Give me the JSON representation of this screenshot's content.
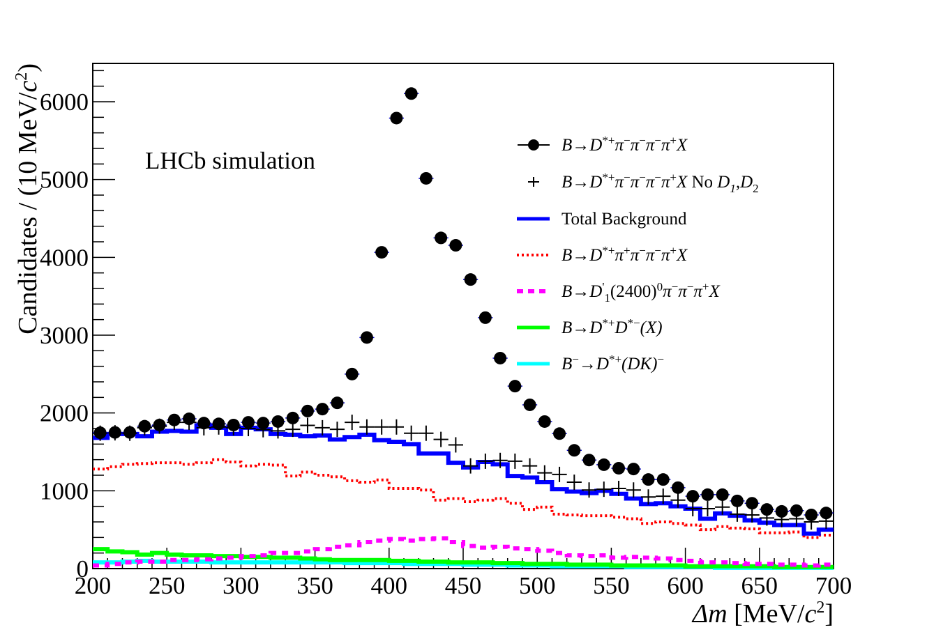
{
  "chart_data": {
    "type": "histogram",
    "title": "",
    "annotation": "LHCb simulation",
    "xlabel": "Δm [MeV/c²]",
    "xlabel_parts": {
      "symbol": "Δm",
      "unit_prefix": " [MeV/",
      "unit_c": "c",
      "unit_exp": "2",
      "unit_suffix": "]"
    },
    "ylabel": "Candidates / (10 MeV/c²)",
    "ylabel_parts": {
      "prefix": "Candidates / (10 MeV/",
      "c": "c",
      "exp": "2",
      "suffix": ")"
    },
    "xlim": [
      200,
      700
    ],
    "ylim": [
      0,
      6500
    ],
    "bin_width": 10,
    "x_ticks": [
      200,
      250,
      300,
      350,
      400,
      450,
      500,
      550,
      600,
      650,
      700
    ],
    "x_tick_labels": [
      "200",
      "250",
      "300",
      "350",
      "400",
      "450",
      "500",
      "550",
      "600",
      "650",
      "700"
    ],
    "y_ticks": [
      0,
      1000,
      2000,
      3000,
      4000,
      5000,
      6000
    ],
    "y_tick_labels": [
      "0",
      "1000",
      "2000",
      "3000",
      "4000",
      "5000",
      "6000"
    ],
    "grid": false,
    "legend_position": "top-right",
    "x_bin_centers": [
      205,
      215,
      225,
      235,
      245,
      255,
      265,
      275,
      285,
      295,
      305,
      315,
      325,
      335,
      345,
      355,
      365,
      375,
      385,
      395,
      405,
      415,
      425,
      435,
      445,
      455,
      465,
      475,
      485,
      495,
      505,
      515,
      525,
      535,
      545,
      555,
      565,
      575,
      585,
      595,
      605,
      615,
      625,
      635,
      645,
      655,
      665,
      675,
      685,
      695
    ],
    "series": [
      {
        "name": "B→D*+π−π−π−π+X",
        "legend_label": {
          "parts": [
            "B→D",
            "*+",
            "π",
            "−",
            "π",
            "−",
            "π",
            "−",
            "π",
            "+",
            "X"
          ]
        },
        "style": "markers-circle",
        "color": "#000000",
        "values": [
          1746,
          1750,
          1750,
          1830,
          1845,
          1910,
          1925,
          1870,
          1860,
          1845,
          1880,
          1870,
          1890,
          1935,
          2025,
          2050,
          2130,
          2500,
          2970,
          4065,
          5790,
          6105,
          5015,
          4250,
          4155,
          3715,
          3225,
          2705,
          2345,
          2105,
          1890,
          1735,
          1520,
          1395,
          1335,
          1290,
          1280,
          1145,
          1145,
          1040,
          930,
          950,
          950,
          870,
          840,
          760,
          735,
          745,
          690,
          715
        ]
      },
      {
        "name": "B→D*+π−π−π−π+X No D1,D2",
        "style": "markers-cross",
        "color": "#000000",
        "values": [
          1740,
          1745,
          1740,
          1810,
          1830,
          1880,
          1880,
          1810,
          1820,
          1810,
          1800,
          1785,
          1770,
          1790,
          1840,
          1810,
          1790,
          1880,
          1820,
          1820,
          1820,
          1740,
          1740,
          1660,
          1590,
          1320,
          1380,
          1390,
          1380,
          1320,
          1230,
          1210,
          1110,
          1010,
          1020,
          1030,
          1010,
          920,
          930,
          880,
          770,
          770,
          790,
          700,
          690,
          650,
          630,
          640,
          600,
          610
        ]
      },
      {
        "name": "Total Background",
        "style": "step-solid",
        "color": "#0000ff",
        "values": [
          1680,
          1730,
          1730,
          1700,
          1760,
          1770,
          1760,
          1840,
          1810,
          1730,
          1810,
          1790,
          1730,
          1720,
          1700,
          1710,
          1660,
          1690,
          1720,
          1650,
          1630,
          1600,
          1480,
          1480,
          1360,
          1300,
          1370,
          1340,
          1190,
          1170,
          1110,
          1020,
          990,
          970,
          1000,
          960,
          900,
          830,
          840,
          800,
          770,
          640,
          710,
          680,
          620,
          590,
          560,
          560,
          450,
          500
        ]
      },
      {
        "name": "B→D*+π+π−π−π+X",
        "style": "step-dotted",
        "color": "#ff0000",
        "values": [
          1280,
          1310,
          1340,
          1350,
          1360,
          1360,
          1340,
          1360,
          1400,
          1370,
          1320,
          1340,
          1330,
          1190,
          1240,
          1200,
          1180,
          1130,
          1110,
          1140,
          1030,
          1030,
          1010,
          880,
          900,
          860,
          880,
          900,
          840,
          760,
          790,
          700,
          690,
          680,
          680,
          660,
          640,
          580,
          600,
          580,
          560,
          500,
          540,
          520,
          510,
          460,
          460,
          470,
          400,
          430
        ]
      },
      {
        "name": "B→D'1(2400)0π−π−π+X",
        "style": "step-dashed",
        "color": "#ff00ff",
        "values": [
          40,
          60,
          80,
          90,
          90,
          110,
          110,
          120,
          130,
          140,
          160,
          170,
          200,
          200,
          220,
          250,
          280,
          300,
          340,
          360,
          380,
          360,
          380,
          390,
          340,
          290,
          270,
          280,
          260,
          250,
          230,
          200,
          170,
          160,
          170,
          140,
          150,
          140,
          130,
          110,
          100,
          80,
          80,
          70,
          60,
          60,
          50,
          50,
          40,
          50
        ]
      },
      {
        "name": "B→D*+D*−(X)",
        "style": "step-solid",
        "color": "#00ff00",
        "values": [
          250,
          220,
          210,
          180,
          200,
          180,
          170,
          170,
          160,
          160,
          150,
          150,
          140,
          140,
          130,
          120,
          110,
          110,
          110,
          110,
          100,
          100,
          90,
          90,
          80,
          80,
          80,
          70,
          70,
          60,
          60,
          60,
          50,
          50,
          50,
          40,
          40,
          40,
          40,
          40,
          30,
          30,
          30,
          30,
          30,
          30,
          20,
          20,
          20,
          20
        ]
      },
      {
        "name": "B−→D*+(DK)−",
        "style": "step-solid",
        "color": "#00ffff",
        "values": [
          80,
          80,
          90,
          100,
          90,
          90,
          90,
          90,
          80,
          80,
          80,
          80,
          80,
          80,
          80,
          80,
          80,
          70,
          70,
          70,
          70,
          60,
          60,
          60,
          60,
          50,
          50,
          50,
          40,
          40,
          40,
          30,
          30,
          30,
          30,
          30,
          20,
          20,
          20,
          20,
          20,
          20,
          10,
          10,
          10,
          10,
          10,
          10,
          10,
          10
        ]
      }
    ]
  },
  "legend": [
    {
      "key": "signal",
      "color": "#000000",
      "segments": [
        [
          "B",
          "i"
        ],
        [
          "→",
          "n"
        ],
        [
          "D",
          "i"
        ],
        [
          "*+",
          "sup"
        ],
        [
          "π",
          "i"
        ],
        [
          "−",
          "sup"
        ],
        [
          "π",
          "i"
        ],
        [
          "−",
          "sup"
        ],
        [
          "π",
          "i"
        ],
        [
          "−",
          "sup"
        ],
        [
          "π",
          "i"
        ],
        [
          "+",
          "sup"
        ],
        [
          "X",
          "i"
        ]
      ]
    },
    {
      "key": "no-d1d2",
      "color": "#000000",
      "segments": [
        [
          "B",
          "i"
        ],
        [
          "→",
          "n"
        ],
        [
          "D",
          "i"
        ],
        [
          "*+",
          "sup"
        ],
        [
          "π",
          "i"
        ],
        [
          "−",
          "sup"
        ],
        [
          "π",
          "i"
        ],
        [
          "−",
          "sup"
        ],
        [
          "π",
          "i"
        ],
        [
          "−",
          "sup"
        ],
        [
          "π",
          "i"
        ],
        [
          "+",
          "sup"
        ],
        [
          "X",
          "i"
        ],
        [
          " No ",
          "n"
        ],
        [
          "D",
          "i"
        ],
        [
          "1",
          "subi"
        ],
        [
          ",D",
          "i"
        ],
        [
          "2",
          "sub"
        ]
      ]
    },
    {
      "key": "total-bkg",
      "color": "#0000ff",
      "segments": [
        [
          "Total Background",
          "n"
        ]
      ]
    },
    {
      "key": "wrong-sign",
      "color": "#ff0000",
      "segments": [
        [
          "B",
          "i"
        ],
        [
          "→",
          "n"
        ],
        [
          "D",
          "i"
        ],
        [
          "*+",
          "sup"
        ],
        [
          "π",
          "i"
        ],
        [
          "+",
          "sup"
        ],
        [
          "π",
          "i"
        ],
        [
          "−",
          "sup"
        ],
        [
          "π",
          "i"
        ],
        [
          "−",
          "sup"
        ],
        [
          "π",
          "i"
        ],
        [
          "+",
          "sup"
        ],
        [
          "X",
          "i"
        ]
      ]
    },
    {
      "key": "d1prime",
      "color": "#ff00ff",
      "segments": [
        [
          "B",
          "i"
        ],
        [
          "→",
          "n"
        ],
        [
          "D",
          "i"
        ],
        [
          "'",
          "sup"
        ],
        [
          "1",
          "sub"
        ],
        [
          "(2400)",
          "n"
        ],
        [
          "0",
          "sup"
        ],
        [
          "π",
          "i"
        ],
        [
          "−",
          "sup"
        ],
        [
          "π",
          "i"
        ],
        [
          "−",
          "sup"
        ],
        [
          "π",
          "i"
        ],
        [
          "+",
          "sup"
        ],
        [
          "X",
          "i"
        ]
      ]
    },
    {
      "key": "dstar-dstar",
      "color": "#00ff00",
      "segments": [
        [
          "B",
          "i"
        ],
        [
          "→",
          "n"
        ],
        [
          "D",
          "i"
        ],
        [
          "*+",
          "sup"
        ],
        [
          "D",
          "i"
        ],
        [
          "*−",
          "sup"
        ],
        [
          "(X)",
          "i"
        ]
      ]
    },
    {
      "key": "dk",
      "color": "#00ffff",
      "segments": [
        [
          "B",
          "i"
        ],
        [
          "−",
          "sup"
        ],
        [
          "→",
          "n"
        ],
        [
          "D",
          "i"
        ],
        [
          "*+",
          "sup"
        ],
        [
          "(DK)",
          "i"
        ],
        [
          "−",
          "sup"
        ]
      ]
    }
  ]
}
